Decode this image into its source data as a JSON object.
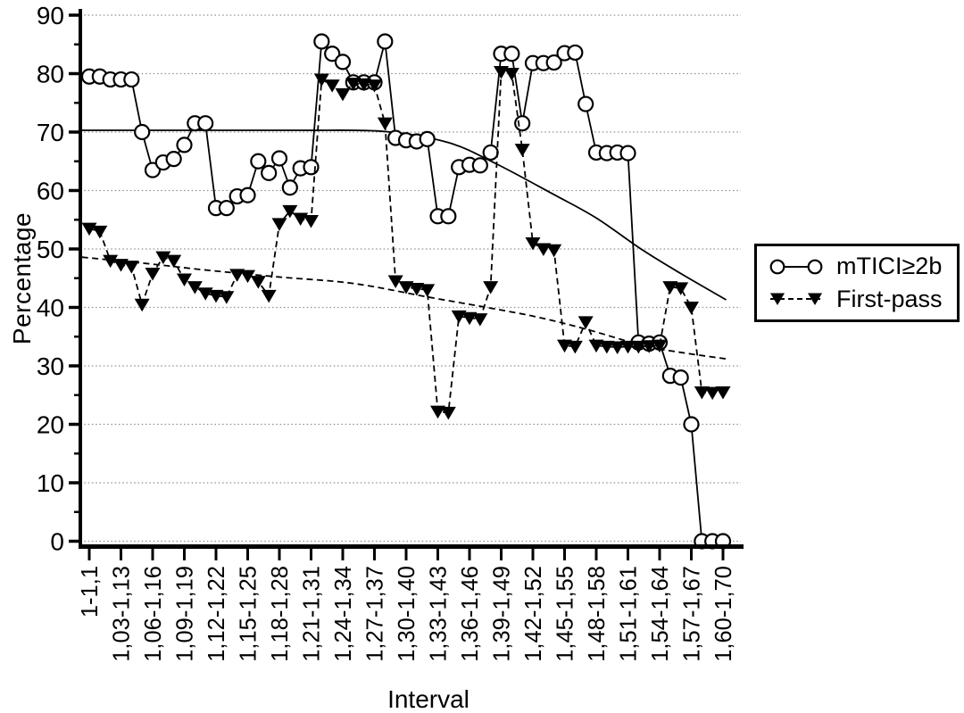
{
  "chart_data": {
    "type": "line",
    "title": "",
    "xlabel": "Interval",
    "ylabel": "Percentage",
    "ylim": [
      0,
      90
    ],
    "ytick_step": 10,
    "ytick_minor_step": 5,
    "grid": "horizontal-dotted",
    "legend_position": "right-outside",
    "categories": [
      "1-1,1",
      "1,03-1,13",
      "1,06-1,16",
      "1,09-1,19",
      "1,12-1,22",
      "1,15-1,25",
      "1,18-1,28",
      "1,21-1,31",
      "1,24-1,34",
      "1,27-1,37",
      "1,30-1,40",
      "1,33-1,43",
      "1,36-1,46",
      "1,39-1,49",
      "1,42-1,52",
      "1,45-1,55",
      "1,48-1,58",
      "1,51-1,61",
      "1,54-1,64",
      "1,57-1,67",
      "1,60-1,70"
    ],
    "points_per_label_interval": 3,
    "series": [
      {
        "name": "mTICI≥2b",
        "marker": "circle-open",
        "line": "solid",
        "values": [
          79.5,
          79.5,
          79,
          79,
          79,
          70,
          63.5,
          64.8,
          65.4,
          67.8,
          71.5,
          71.5,
          57,
          57,
          59,
          59.2,
          65,
          63,
          65.5,
          60.5,
          63.8,
          64,
          85.5,
          83.4,
          82,
          78.5,
          78.5,
          78.5,
          85.5,
          69,
          68.6,
          68.4,
          68.8,
          55.6,
          55.6,
          64,
          64.4,
          64.3,
          66.5,
          83.4,
          83.4,
          71.5,
          81.8,
          81.8,
          81.9,
          83.5,
          83.6,
          74.8,
          66.5,
          66.4,
          66.5,
          66.4,
          34,
          33.8,
          34,
          28.3,
          28,
          20,
          0,
          0,
          0
        ]
      },
      {
        "name": "First-pass",
        "marker": "triangle-down-filled",
        "line": "dashed",
        "values": [
          53.5,
          53,
          48,
          47.3,
          47,
          40.5,
          45.8,
          48.6,
          48,
          44.8,
          43.5,
          42.4,
          42,
          41.8,
          45.6,
          45.4,
          44.4,
          42,
          54.3,
          56.5,
          55.2,
          54.8,
          79,
          78,
          76.5,
          78.3,
          78.2,
          78,
          71.5,
          44.5,
          43.5,
          43.2,
          43,
          22.2,
          22,
          38.5,
          38.2,
          38,
          43.5,
          80.3,
          80,
          67,
          51,
          50,
          49.8,
          33.5,
          33.3,
          37.5,
          33.5,
          33.3,
          33.2,
          33.3,
          33.3,
          33.4,
          33.5,
          43.5,
          43.3,
          40,
          25.5,
          25.4,
          25.5
        ]
      }
    ],
    "trend_lines": [
      {
        "series": "mTICI≥2b",
        "style": "solid",
        "points": [
          [
            -0.7,
            70.3
          ],
          [
            10,
            70.3
          ],
          [
            20,
            70.3
          ],
          [
            28,
            70.1
          ],
          [
            34,
            68.2
          ],
          [
            38.5,
            64.6
          ],
          [
            44,
            59.3
          ],
          [
            48,
            55.3
          ],
          [
            52.4,
            49.8
          ],
          [
            56,
            45.8
          ],
          [
            60.3,
            41.3
          ]
        ]
      },
      {
        "series": "First-pass",
        "style": "dashed",
        "points": [
          [
            -0.7,
            48.6
          ],
          [
            6,
            47.4
          ],
          [
            11,
            46.4
          ],
          [
            18,
            45.2
          ],
          [
            25,
            44.1
          ],
          [
            32,
            41.8
          ],
          [
            37,
            40.2
          ],
          [
            42.3,
            38.4
          ],
          [
            47,
            36.3
          ],
          [
            52.4,
            33.5
          ],
          [
            56,
            32.3
          ],
          [
            60.3,
            31.2
          ]
        ]
      }
    ]
  },
  "colors": {
    "foreground": "#000000",
    "background": "#ffffff",
    "gridline": "#8f8f8f"
  }
}
